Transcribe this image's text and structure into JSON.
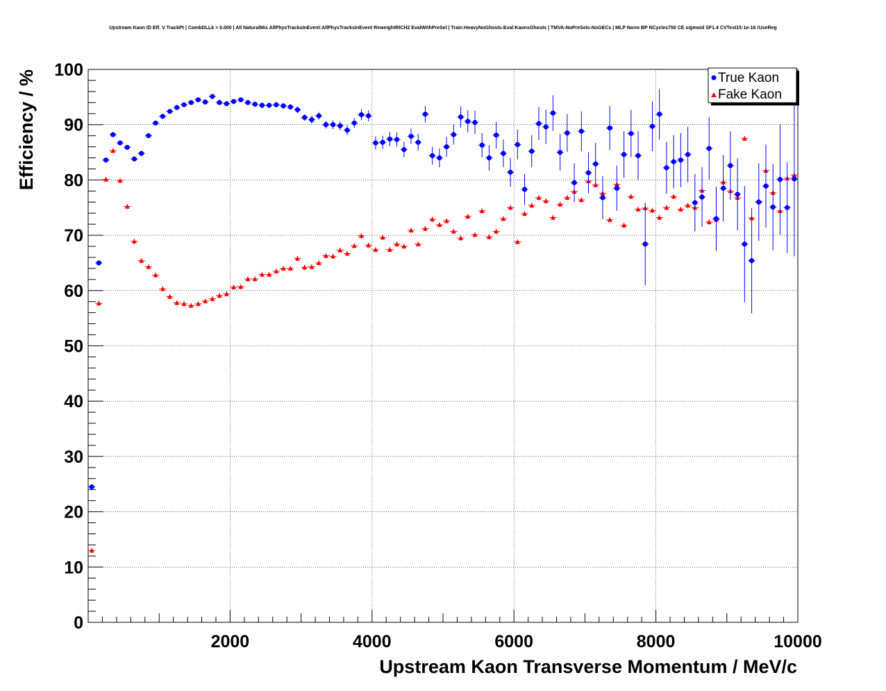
{
  "chart_data": {
    "type": "scatter",
    "title": "Upstream Kaon ID Eff. V TrackPt | CombDLLk > 0.000 | All NaturalMix AllPhysTracksInEvent:AllPhysTracksInEvent ReweightRICH2 EvalWithPreSel | Train:HeavyNoGhosts-Eval:KaonsGhosts | TMVA-NoPreSels-NoGECs | MLP Norm BP NCycles750 CE sigmoid SF1.4 CVTest15:1e-16 !UseReg",
    "xlabel": "Upstream Kaon Transverse Momentum / MeV/c",
    "ylabel": "Efficiency / %",
    "xlim": [
      0,
      10000
    ],
    "ylim": [
      0,
      100
    ],
    "xticks": [
      2000,
      4000,
      6000,
      8000,
      10000
    ],
    "xtick_labels": [
      "2000",
      "4000",
      "6000",
      "8000",
      "10000"
    ],
    "yticks": [
      0,
      10,
      20,
      30,
      40,
      50,
      60,
      70,
      80,
      90,
      100
    ],
    "ytick_labels": [
      "0",
      "10",
      "20",
      "30",
      "40",
      "50",
      "60",
      "70",
      "80",
      "90",
      "100"
    ],
    "grid": true,
    "legend_position": "top-right",
    "series": [
      {
        "name": "True Kaon",
        "color": "#0000ff",
        "marker": "circle",
        "x": [
          50,
          150,
          250,
          350,
          450,
          550,
          650,
          750,
          850,
          950,
          1050,
          1150,
          1250,
          1350,
          1450,
          1550,
          1650,
          1750,
          1850,
          1950,
          2050,
          2150,
          2250,
          2350,
          2450,
          2550,
          2650,
          2750,
          2850,
          2950,
          3050,
          3150,
          3250,
          3350,
          3450,
          3550,
          3650,
          3750,
          3850,
          3950,
          4050,
          4150,
          4250,
          4350,
          4450,
          4550,
          4650,
          4750,
          4850,
          4950,
          5050,
          5150,
          5250,
          5350,
          5450,
          5550,
          5650,
          5750,
          5850,
          5950,
          6050,
          6150,
          6250,
          6350,
          6450,
          6550,
          6650,
          6750,
          6850,
          6950,
          7050,
          7150,
          7250,
          7350,
          7450,
          7550,
          7650,
          7750,
          7850,
          7950,
          8050,
          8150,
          8250,
          8350,
          8450,
          8550,
          8650,
          8750,
          8850,
          8950,
          9050,
          9150,
          9250,
          9350,
          9450,
          9550,
          9650,
          9750,
          9850,
          9950
        ],
        "y": [
          24.5,
          65,
          83.6,
          88.2,
          86.7,
          85.9,
          83.8,
          84.8,
          88.0,
          90.3,
          91.5,
          92.4,
          93.1,
          93.6,
          94.0,
          94.5,
          94.1,
          95.1,
          94.0,
          93.8,
          94.2,
          94.5,
          94.0,
          93.7,
          93.5,
          93.5,
          93.6,
          93.4,
          93.2,
          92.7,
          91.3,
          90.9,
          91.6,
          90.0,
          90.0,
          89.8,
          89.0,
          90.3,
          91.8,
          91.6,
          86.7,
          86.8,
          87.4,
          87.3,
          85.5,
          87.9,
          86.8,
          91.9,
          84.4,
          84.0,
          86.0,
          88.2,
          91.4,
          90.6,
          90.4,
          86.3,
          84.0,
          88.1,
          84.8,
          81.4,
          86.4,
          78.3,
          85.2,
          90.2,
          89.6,
          92.1,
          85.0,
          88.5,
          79.5,
          88.8,
          81.3,
          82.9,
          76.8,
          89.4,
          78.5,
          84.6,
          88.4,
          84.4,
          68.4,
          89.7,
          91.9,
          82.2,
          83.3,
          83.6,
          84.6,
          75.9,
          76.9,
          85.7,
          73.0,
          78.5,
          82.6,
          77.4,
          68.4,
          65.4,
          76.0,
          78.9,
          75.1,
          80.1,
          75.0,
          80.2
        ],
        "yerr": [
          0.4,
          0.4,
          0.4,
          0.4,
          0.4,
          0.4,
          0.4,
          0.4,
          0.4,
          0.4,
          0.4,
          0.4,
          0.4,
          0.4,
          0.4,
          0.4,
          0.4,
          0.4,
          0.4,
          0.4,
          0.4,
          0.4,
          0.4,
          0.4,
          0.5,
          0.5,
          0.5,
          0.5,
          0.5,
          0.6,
          0.6,
          0.7,
          0.7,
          0.7,
          0.8,
          0.8,
          0.9,
          0.9,
          1.0,
          1.0,
          1.2,
          1.2,
          1.3,
          1.3,
          1.4,
          1.4,
          1.5,
          1.5,
          1.6,
          1.7,
          1.8,
          1.8,
          1.9,
          2.0,
          2.1,
          2.2,
          2.3,
          2.4,
          2.5,
          2.6,
          2.7,
          2.8,
          2.9,
          3.0,
          3.1,
          3.2,
          3.3,
          3.4,
          3.5,
          3.6,
          3.7,
          3.8,
          3.9,
          4.0,
          4.1,
          4.2,
          4.3,
          4.4,
          7.5,
          4.5,
          4.6,
          4.7,
          4.8,
          4.9,
          5.0,
          5.2,
          5.4,
          5.6,
          5.8,
          6.0,
          6.2,
          6.5,
          10.5,
          9.5,
          7.0,
          7.5,
          7.8,
          10.0,
          8.2,
          14.0
        ]
      },
      {
        "name": "Fake Kaon",
        "color": "#ff0000",
        "marker": "triangle",
        "x": [
          50,
          150,
          250,
          350,
          450,
          550,
          650,
          750,
          850,
          950,
          1050,
          1150,
          1250,
          1350,
          1450,
          1550,
          1650,
          1750,
          1850,
          1950,
          2050,
          2150,
          2250,
          2350,
          2450,
          2550,
          2650,
          2750,
          2850,
          2950,
          3050,
          3150,
          3250,
          3350,
          3450,
          3550,
          3650,
          3750,
          3850,
          3950,
          4050,
          4150,
          4250,
          4350,
          4450,
          4550,
          4650,
          4750,
          4850,
          4950,
          5050,
          5150,
          5250,
          5350,
          5450,
          5550,
          5650,
          5750,
          5850,
          5950,
          6050,
          6150,
          6250,
          6350,
          6450,
          6550,
          6650,
          6750,
          6850,
          6950,
          7050,
          7150,
          7250,
          7350,
          7450,
          7550,
          7650,
          7750,
          7850,
          7950,
          8050,
          8150,
          8250,
          8350,
          8450,
          8550,
          8650,
          8750,
          8850,
          8950,
          9050,
          9150,
          9250,
          9350,
          9450,
          9550,
          9650,
          9750,
          9850,
          9950
        ],
        "y": [
          13.0,
          57.7,
          80.1,
          85.3,
          79.9,
          75.2,
          68.9,
          65.4,
          64.3,
          62.8,
          60.3,
          58.9,
          57.8,
          57.6,
          57.3,
          57.6,
          58.1,
          58.5,
          59.1,
          59.4,
          60.6,
          60.7,
          62.1,
          62.1,
          62.9,
          62.9,
          63.5,
          64.0,
          64.0,
          65.8,
          64.2,
          64.3,
          65.0,
          66.3,
          66.2,
          67.3,
          66.7,
          68.1,
          69.9,
          68.2,
          67.4,
          69.6,
          67.4,
          68.4,
          68.0,
          70.9,
          68.4,
          71.2,
          72.9,
          71.9,
          72.6,
          70.7,
          69.5,
          73.4,
          70.1,
          74.4,
          69.7,
          70.7,
          73.0,
          75.0,
          68.8,
          73.9,
          75.4,
          76.8,
          76.2,
          73.2,
          75.6,
          76.8,
          77.9,
          76.4,
          79.8,
          79.1,
          77.6,
          72.8,
          79.2,
          71.8,
          77.0,
          74.7,
          74.9,
          74.5,
          73.2,
          75.0,
          77.0,
          74.7,
          75.4,
          75.0,
          78.1,
          72.4,
          72.8,
          79.6,
          78.0,
          76.8,
          87.5,
          73.1,
          76.1,
          81.7,
          77.7,
          74.4,
          80.3,
          80.9
        ]
      }
    ]
  },
  "legend": {
    "true_label": "True Kaon",
    "fake_label": "Fake Kaon"
  }
}
